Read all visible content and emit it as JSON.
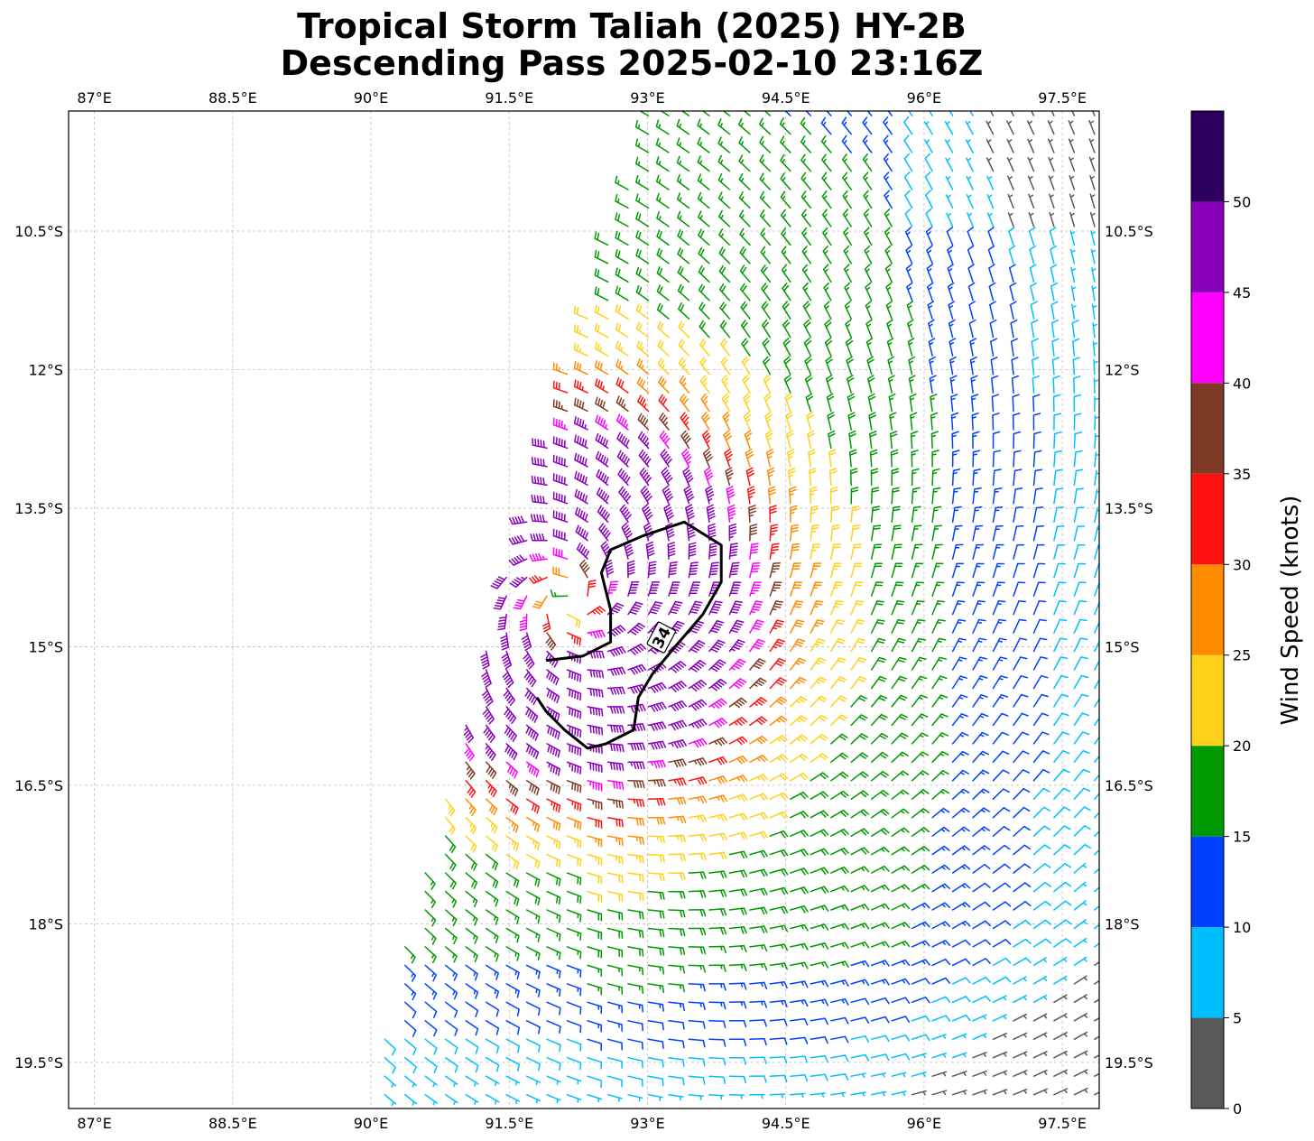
{
  "title": {
    "line1": "Tropical Storm Taliah (2025) HY-2B",
    "line2": "Descending Pass 2025-02-10 23:16Z"
  },
  "map": {
    "lon_range": [
      86.72,
      97.9
    ],
    "lat_range": [
      -20.0,
      -9.2
    ],
    "lon_ticks": [
      87,
      88.5,
      90,
      91.5,
      93,
      94.5,
      96,
      97.5
    ],
    "lon_tick_labels": [
      "87°E",
      "88.5°E",
      "90°E",
      "91.5°E",
      "93°E",
      "94.5°E",
      "96°E",
      "97.5°E"
    ],
    "lat_ticks": [
      -10.5,
      -12,
      -13.5,
      -15,
      -16.5,
      -18,
      -19.5
    ],
    "lat_tick_labels": [
      "10.5°S",
      "12°S",
      "13.5°S",
      "15°S",
      "16.5°S",
      "18°S",
      "19.5°S"
    ],
    "gridlines": true,
    "storm_center": {
      "lon": 92.15,
      "lat": -14.5
    },
    "swath_west_edge": [
      [
        93.0,
        -9.2
      ],
      [
        91.4,
        -14.4
      ],
      [
        89.9,
        -20.0
      ]
    ],
    "contour_34kt": {
      "level_label": "34",
      "path": [
        [
          91.9,
          -15.15
        ],
        [
          92.3,
          -15.1
        ],
        [
          92.6,
          -14.95
        ],
        [
          92.6,
          -14.6
        ],
        [
          92.5,
          -14.2
        ],
        [
          92.6,
          -13.95
        ],
        [
          92.95,
          -13.8
        ],
        [
          93.4,
          -13.65
        ],
        [
          93.8,
          -13.9
        ],
        [
          93.8,
          -14.3
        ],
        [
          93.6,
          -14.65
        ],
        [
          93.3,
          -15.0
        ],
        [
          93.05,
          -15.3
        ],
        [
          92.9,
          -15.55
        ],
        [
          92.85,
          -15.9
        ],
        [
          92.55,
          -16.05
        ],
        [
          92.35,
          -16.1
        ],
        [
          92.1,
          -15.9
        ],
        [
          91.9,
          -15.7
        ],
        [
          91.8,
          -15.55
        ]
      ]
    }
  },
  "colorbar": {
    "label": "Wind Speed (knots)",
    "bounds": [
      0,
      5,
      10,
      15,
      20,
      25,
      30,
      35,
      40,
      45,
      50,
      55
    ],
    "tick_labels": [
      "0",
      "5",
      "10",
      "15",
      "20",
      "25",
      "30",
      "35",
      "40",
      "45",
      "50"
    ],
    "colors": [
      "#595959",
      "#00bfff",
      "#0040ff",
      "#009900",
      "#ffd11a",
      "#ff8c00",
      "#ff1111",
      "#7f3a26",
      "#ff00ff",
      "#8800bb",
      "#2d0060"
    ]
  }
}
